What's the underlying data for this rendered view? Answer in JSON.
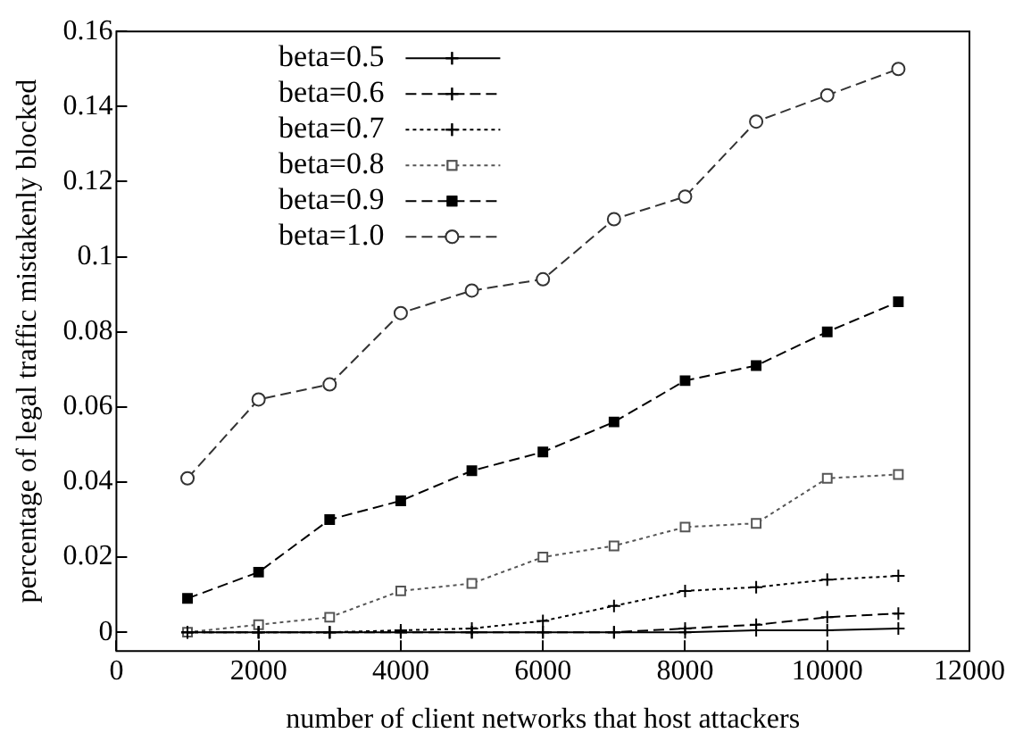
{
  "chart_data": {
    "type": "line",
    "xlabel": "number of client networks that host attackers",
    "ylabel": "percentage of legal traffic mistakenly blocked",
    "x": [
      1000,
      2000,
      3000,
      4000,
      5000,
      6000,
      7000,
      8000,
      9000,
      10000,
      11000
    ],
    "xlim": [
      0,
      12000
    ],
    "xticks": [
      0,
      2000,
      4000,
      6000,
      8000,
      10000,
      12000
    ],
    "ylim": [
      -0.005,
      0.16
    ],
    "yticks": [
      0,
      0.02,
      0.04,
      0.06,
      0.08,
      0.1,
      0.12,
      0.14,
      0.16
    ],
    "grid": false,
    "legend": "top left",
    "series": [
      {
        "name": "beta=0.5",
        "color": "#000000",
        "marker": "cross",
        "line_style": "solid",
        "values": [
          0,
          0,
          0,
          0,
          0,
          0,
          0,
          0,
          0.0005,
          0.0005,
          0.001
        ]
      },
      {
        "name": "beta=0.6",
        "color": "#000000",
        "marker": "cross",
        "line_style": "dashed",
        "values": [
          0,
          0,
          0,
          0,
          0,
          0,
          0,
          0.001,
          0.002,
          0.004,
          0.005
        ]
      },
      {
        "name": "beta=0.7",
        "color": "#000000",
        "marker": "cross",
        "line_style": "dotted",
        "values": [
          0,
          0,
          0,
          0.0005,
          0.001,
          0.003,
          0.007,
          0.011,
          0.012,
          0.014,
          0.015
        ]
      },
      {
        "name": "beta=0.8",
        "color": "#555555",
        "marker": "square",
        "line_style": "dotted",
        "values": [
          0,
          0.002,
          0.004,
          0.011,
          0.013,
          0.02,
          0.023,
          0.028,
          0.029,
          0.041,
          0.042
        ]
      },
      {
        "name": "beta=0.9",
        "color": "#000000",
        "marker": "square",
        "line_style": "dashed",
        "values": [
          0.009,
          0.016,
          0.03,
          0.035,
          0.043,
          0.048,
          0.056,
          0.067,
          0.071,
          0.08,
          0.088
        ]
      },
      {
        "name": "beta=1.0",
        "color": "#333333",
        "marker": "circle",
        "line_style": "dashed",
        "values": [
          0.041,
          0.062,
          0.066,
          0.085,
          0.091,
          0.094,
          0.11,
          0.116,
          0.136,
          0.143,
          0.15
        ]
      }
    ]
  }
}
